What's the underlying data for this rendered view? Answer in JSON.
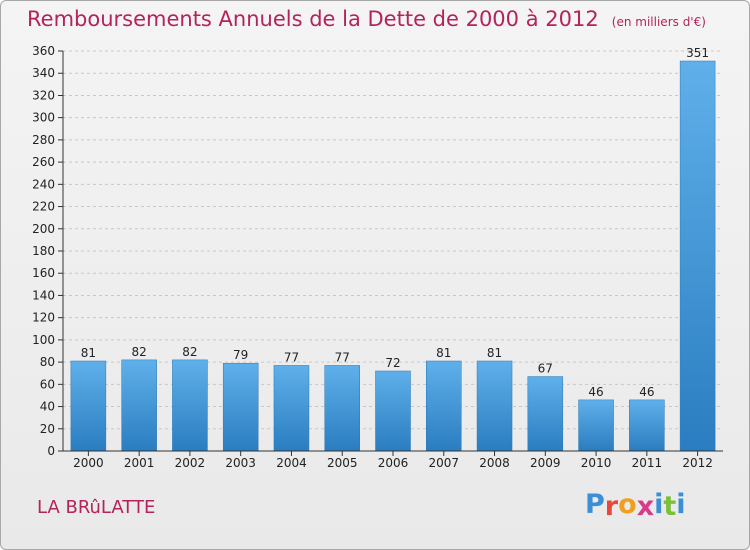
{
  "header": {
    "title": "Remboursements Annuels de la Dette de 2000 à 2012",
    "unit": "(en milliers d'€)"
  },
  "footer": {
    "place": "LA BRûLATTE",
    "logo_letters": [
      "P",
      "r",
      "o",
      "x",
      "i",
      "t",
      "i"
    ],
    "logo_colors": [
      "#3a8fd6",
      "#e8473b",
      "#f0a020",
      "#d83a8c",
      "#3a8fd6",
      "#7cbf3a",
      "#3a8fd6"
    ]
  },
  "colors": {
    "bar": "#3a96dc",
    "bar_light": "#5fb0ea",
    "bar_dark": "#2a7dc0",
    "title": "#b3245c",
    "axis": "#333333",
    "grid": "#c8c8c8"
  },
  "chart_data": {
    "type": "bar",
    "title": "Remboursements Annuels de la Dette de 2000 à 2012",
    "categories": [
      "2000",
      "2001",
      "2002",
      "2003",
      "2004",
      "2005",
      "2006",
      "2007",
      "2008",
      "2009",
      "2010",
      "2011",
      "2012"
    ],
    "values": [
      81,
      82,
      82,
      79,
      77,
      77,
      72,
      81,
      81,
      67,
      46,
      46,
      351
    ],
    "data_labels": [
      "81",
      "82",
      "82",
      "79",
      "77",
      "77",
      "72",
      "81",
      "81",
      "67",
      "46",
      "46",
      "351"
    ],
    "ylim": [
      0,
      360
    ],
    "yticks": [
      "0",
      "20",
      "40",
      "60",
      "80",
      "100",
      "120",
      "140",
      "160",
      "180",
      "200",
      "220",
      "240",
      "260",
      "280",
      "300",
      "320",
      "340",
      "360"
    ],
    "grid": true,
    "legend": "none"
  }
}
